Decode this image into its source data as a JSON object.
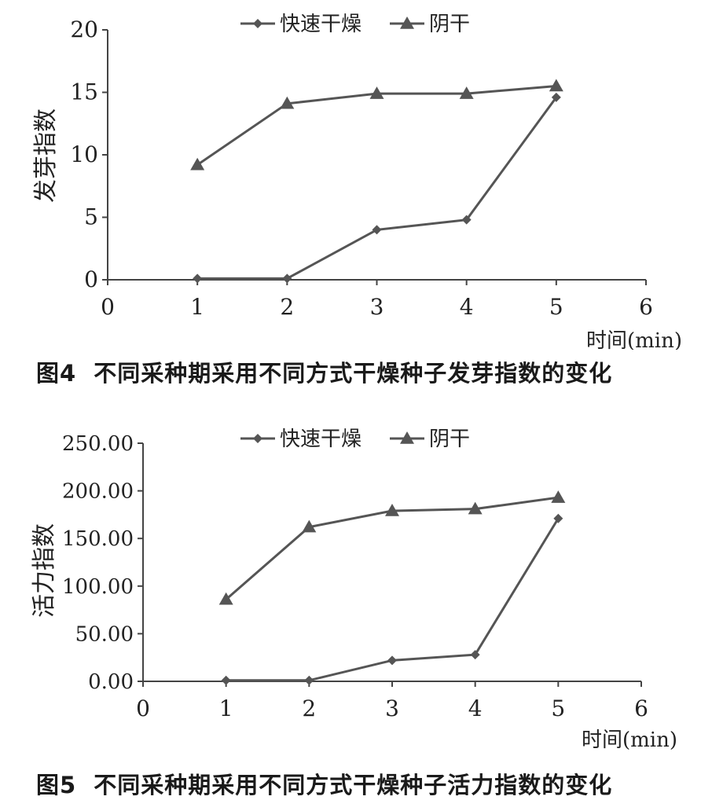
{
  "chart_data": [
    {
      "type": "line",
      "id": "fig4",
      "caption_label": "图4",
      "caption_text": "不同采种期采用不同方式干燥种子发芽指数的变化",
      "xlabel": "时间(min)",
      "ylabel": "发芽指数",
      "xlim": [
        0,
        6
      ],
      "ylim": [
        0,
        20
      ],
      "x_ticks": [
        0,
        1,
        2,
        3,
        4,
        5,
        6
      ],
      "y_ticks": [
        0,
        5,
        10,
        15,
        20
      ],
      "y_tick_labels": [
        "0",
        "5",
        "10",
        "15",
        "20"
      ],
      "grid": false,
      "legend_position": "top-center",
      "x": [
        1,
        2,
        3,
        4,
        5
      ],
      "series": [
        {
          "name": "快速干燥",
          "marker": "diamond",
          "values": [
            0.1,
            0.1,
            4.0,
            4.8,
            14.6
          ],
          "color": "#555555"
        },
        {
          "name": "阴干",
          "marker": "triangle",
          "values": [
            9.2,
            14.1,
            14.9,
            14.9,
            15.5
          ],
          "color": "#555555"
        }
      ]
    },
    {
      "type": "line",
      "id": "fig5",
      "caption_label": "图5",
      "caption_text": "不同采种期采用不同方式干燥种子活力指数的变化",
      "xlabel": "时间(min)",
      "ylabel": "活力指数",
      "xlim": [
        0,
        6
      ],
      "ylim": [
        0,
        250
      ],
      "x_ticks": [
        0,
        1,
        2,
        3,
        4,
        5,
        6
      ],
      "y_ticks": [
        0,
        50,
        100,
        150,
        200,
        250
      ],
      "y_tick_labels": [
        "0.00",
        "50.00",
        "100.00",
        "150.00",
        "200.00",
        "250.00"
      ],
      "grid": false,
      "legend_position": "top-center",
      "x": [
        1,
        2,
        3,
        4,
        5
      ],
      "series": [
        {
          "name": "快速干燥",
          "marker": "diamond",
          "values": [
            1,
            1,
            22,
            28,
            171
          ],
          "color": "#555555"
        },
        {
          "name": "阴干",
          "marker": "triangle",
          "values": [
            86,
            162,
            179,
            181,
            193
          ],
          "color": "#555555"
        }
      ]
    }
  ]
}
